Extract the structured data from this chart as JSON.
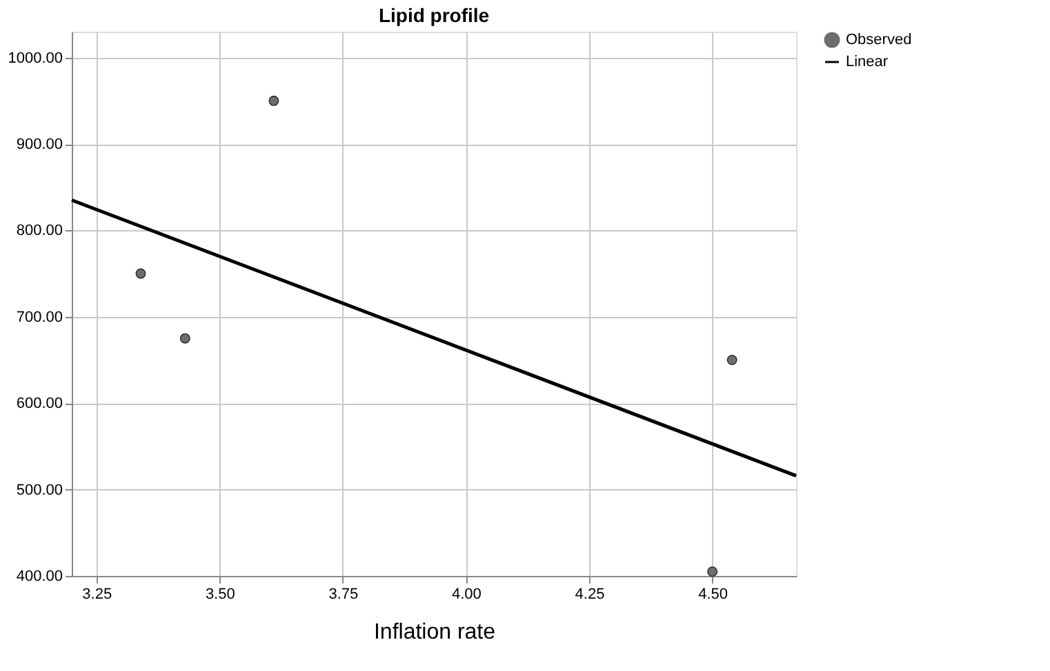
{
  "chart_data": {
    "type": "scatter",
    "title": "Lipid profile",
    "xlabel": "Inflation rate",
    "xlim": [
      3.2,
      4.67
    ],
    "xticks": [
      {
        "value": 3.25,
        "label": "3.25"
      },
      {
        "value": 3.5,
        "label": "3.50"
      },
      {
        "value": 3.75,
        "label": "3.75"
      },
      {
        "value": 4,
        "label": "4.00"
      },
      {
        "value": 4.25,
        "label": "4.25"
      },
      {
        "value": 4.5,
        "label": "4.50"
      }
    ],
    "ylim": [
      400,
      1030
    ],
    "yticks": [
      {
        "value": 400,
        "label": "400.00"
      },
      {
        "value": 500,
        "label": "500.00"
      },
      {
        "value": 600,
        "label": "600.00"
      },
      {
        "value": 700,
        "label": "700.00"
      },
      {
        "value": 800,
        "label": "800.00"
      },
      {
        "value": 900,
        "label": "900.00"
      },
      {
        "value": 1000,
        "label": "1000.00"
      }
    ],
    "grid": true,
    "legend": "top right",
    "series": [
      {
        "name": "Observed",
        "marker": "circle",
        "color": "#6e6e6e",
        "x": [
          3.34,
          3.43,
          3.61,
          4.54,
          4.5
        ],
        "values": [
          750,
          675,
          950,
          650,
          405
        ]
      },
      {
        "name": "Linear",
        "type": "line",
        "color": "#000000",
        "x": [
          3.2,
          4.67
        ],
        "values": [
          835,
          516
        ],
        "line_style": "solid"
      }
    ]
  }
}
